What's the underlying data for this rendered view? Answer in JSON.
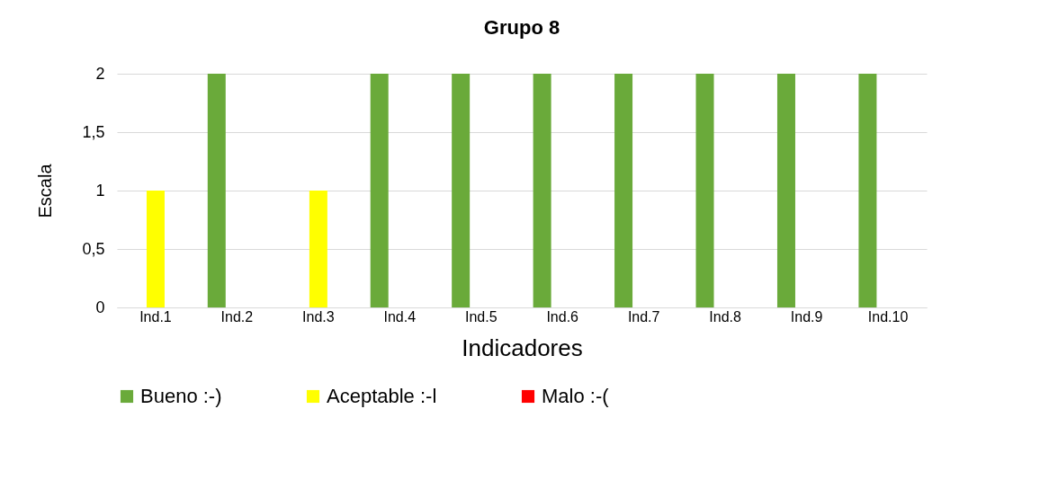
{
  "chart_data": {
    "type": "bar",
    "title": "Grupo 8",
    "xlabel": "Indicadores",
    "ylabel": "Escala",
    "categories": [
      "Ind.1",
      "Ind.2",
      "Ind.3",
      "Ind.4",
      "Ind.5",
      "Ind.6",
      "Ind.7",
      "Ind.8",
      "Ind.9",
      "Ind.10"
    ],
    "series": [
      {
        "name": "Bueno :-)",
        "color": "#6aaa3a",
        "values": [
          0,
          2,
          0,
          2,
          2,
          2,
          2,
          2,
          2,
          2
        ]
      },
      {
        "name": "Aceptable :-l",
        "color": "#ffff00",
        "values": [
          1,
          0,
          1,
          0,
          0,
          0,
          0,
          0,
          0,
          0
        ]
      },
      {
        "name": "Malo :-(",
        "color": "#ff0000",
        "values": [
          0,
          0,
          0,
          0,
          0,
          0,
          0,
          0,
          0,
          0
        ]
      }
    ],
    "ylim": [
      0,
      2
    ],
    "yticks": [
      0,
      {
        "value": 0.5,
        "label": "0,5"
      },
      1,
      {
        "value": 1.5,
        "label": "1,5"
      },
      2
    ],
    "grid": "y",
    "legend": "bottom"
  }
}
